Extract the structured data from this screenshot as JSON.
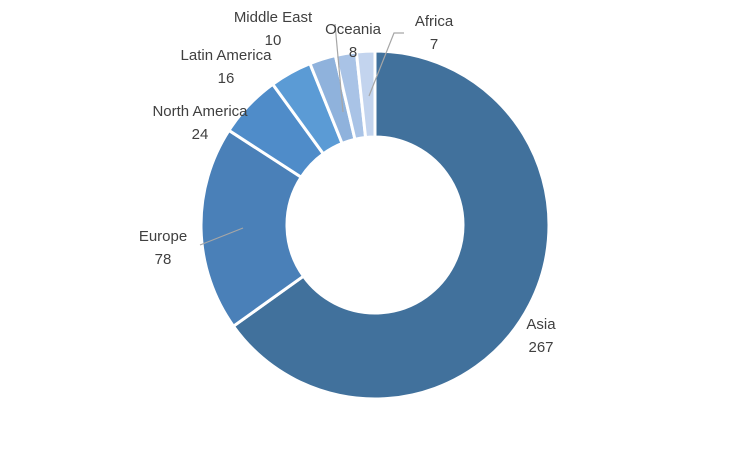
{
  "chart_data": {
    "type": "donut",
    "categories": [
      "Asia",
      "Europe",
      "North America",
      "Latin America",
      "Middle East",
      "Oceania",
      "Africa"
    ],
    "values": [
      267,
      78,
      24,
      16,
      10,
      8,
      7
    ],
    "colors": [
      "#41719c",
      "#4a80b8",
      "#4f8cc9",
      "#5b9bd5",
      "#8fb2dc",
      "#a9c3e6",
      "#c3d4ee"
    ]
  }
}
